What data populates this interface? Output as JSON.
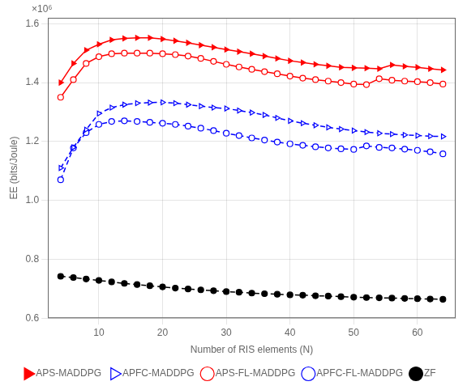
{
  "chart_data": {
    "type": "line",
    "x": [
      4,
      6,
      8,
      10,
      12,
      14,
      16,
      18,
      20,
      22,
      24,
      26,
      28,
      30,
      32,
      34,
      36,
      38,
      40,
      42,
      44,
      46,
      48,
      50,
      52,
      54,
      56,
      58,
      60,
      62,
      64
    ],
    "series": [
      {
        "name": "APS-MADDPG",
        "color": "#ff0000",
        "line_style": "solid",
        "marker": "triangle-right",
        "values": [
          1.4,
          1.465,
          1.51,
          1.53,
          1.545,
          1.55,
          1.552,
          1.552,
          1.548,
          1.542,
          1.535,
          1.527,
          1.52,
          1.512,
          1.505,
          1.498,
          1.49,
          1.482,
          1.474,
          1.468,
          1.462,
          1.457,
          1.452,
          1.45,
          1.449,
          1.447,
          1.46,
          1.455,
          1.452,
          1.447,
          1.443
        ]
      },
      {
        "name": "APFC-MADDPG",
        "color": "#0000ff",
        "line_style": "dashed",
        "marker": "triangle-right-open",
        "values": [
          1.11,
          1.18,
          1.24,
          1.295,
          1.315,
          1.325,
          1.33,
          1.332,
          1.333,
          1.33,
          1.325,
          1.32,
          1.315,
          1.312,
          1.305,
          1.298,
          1.29,
          1.28,
          1.27,
          1.262,
          1.255,
          1.248,
          1.242,
          1.237,
          1.232,
          1.228,
          1.225,
          1.222,
          1.22,
          1.218,
          1.217
        ]
      },
      {
        "name": "APS-FL-MADDPG",
        "color": "#ff0000",
        "line_style": "solid",
        "marker": "circle-open",
        "values": [
          1.35,
          1.41,
          1.465,
          1.488,
          1.498,
          1.5,
          1.5,
          1.5,
          1.498,
          1.495,
          1.49,
          1.482,
          1.472,
          1.462,
          1.453,
          1.445,
          1.437,
          1.43,
          1.422,
          1.415,
          1.41,
          1.405,
          1.4,
          1.395,
          1.393,
          1.413,
          1.408,
          1.405,
          1.403,
          1.4,
          1.395
        ]
      },
      {
        "name": "APFC-FL-MADDPG",
        "color": "#0000ff",
        "line_style": "dashed",
        "marker": "circle-open",
        "values": [
          1.07,
          1.178,
          1.23,
          1.258,
          1.268,
          1.27,
          1.268,
          1.265,
          1.262,
          1.258,
          1.252,
          1.245,
          1.237,
          1.228,
          1.22,
          1.212,
          1.205,
          1.198,
          1.192,
          1.187,
          1.182,
          1.178,
          1.175,
          1.173,
          1.185,
          1.18,
          1.178,
          1.174,
          1.17,
          1.165,
          1.158
        ]
      },
      {
        "name": "ZF",
        "color": "#000000",
        "line_style": "dashed",
        "marker": "circle",
        "values": [
          0.742,
          0.738,
          0.733,
          0.728,
          0.723,
          0.718,
          0.714,
          0.71,
          0.706,
          0.702,
          0.699,
          0.696,
          0.693,
          0.69,
          0.688,
          0.685,
          0.683,
          0.681,
          0.679,
          0.678,
          0.676,
          0.675,
          0.673,
          0.671,
          0.67,
          0.669,
          0.668,
          0.667,
          0.666,
          0.665,
          0.664
        ]
      }
    ],
    "xlabel": "Number of RIS elements (N)",
    "ylabel": "EE (bits/Joule)",
    "annotation": "×10⁶",
    "xlim": [
      2,
      66
    ],
    "ylim": [
      0.6,
      1.62
    ],
    "xticks": [
      10,
      20,
      30,
      40,
      50,
      60
    ],
    "yticks": [
      0.6,
      0.8,
      {
        "value": 1.0,
        "label": "1.0"
      },
      1.2,
      1.4,
      1.6
    ],
    "grid": true,
    "legend": "bottom"
  }
}
